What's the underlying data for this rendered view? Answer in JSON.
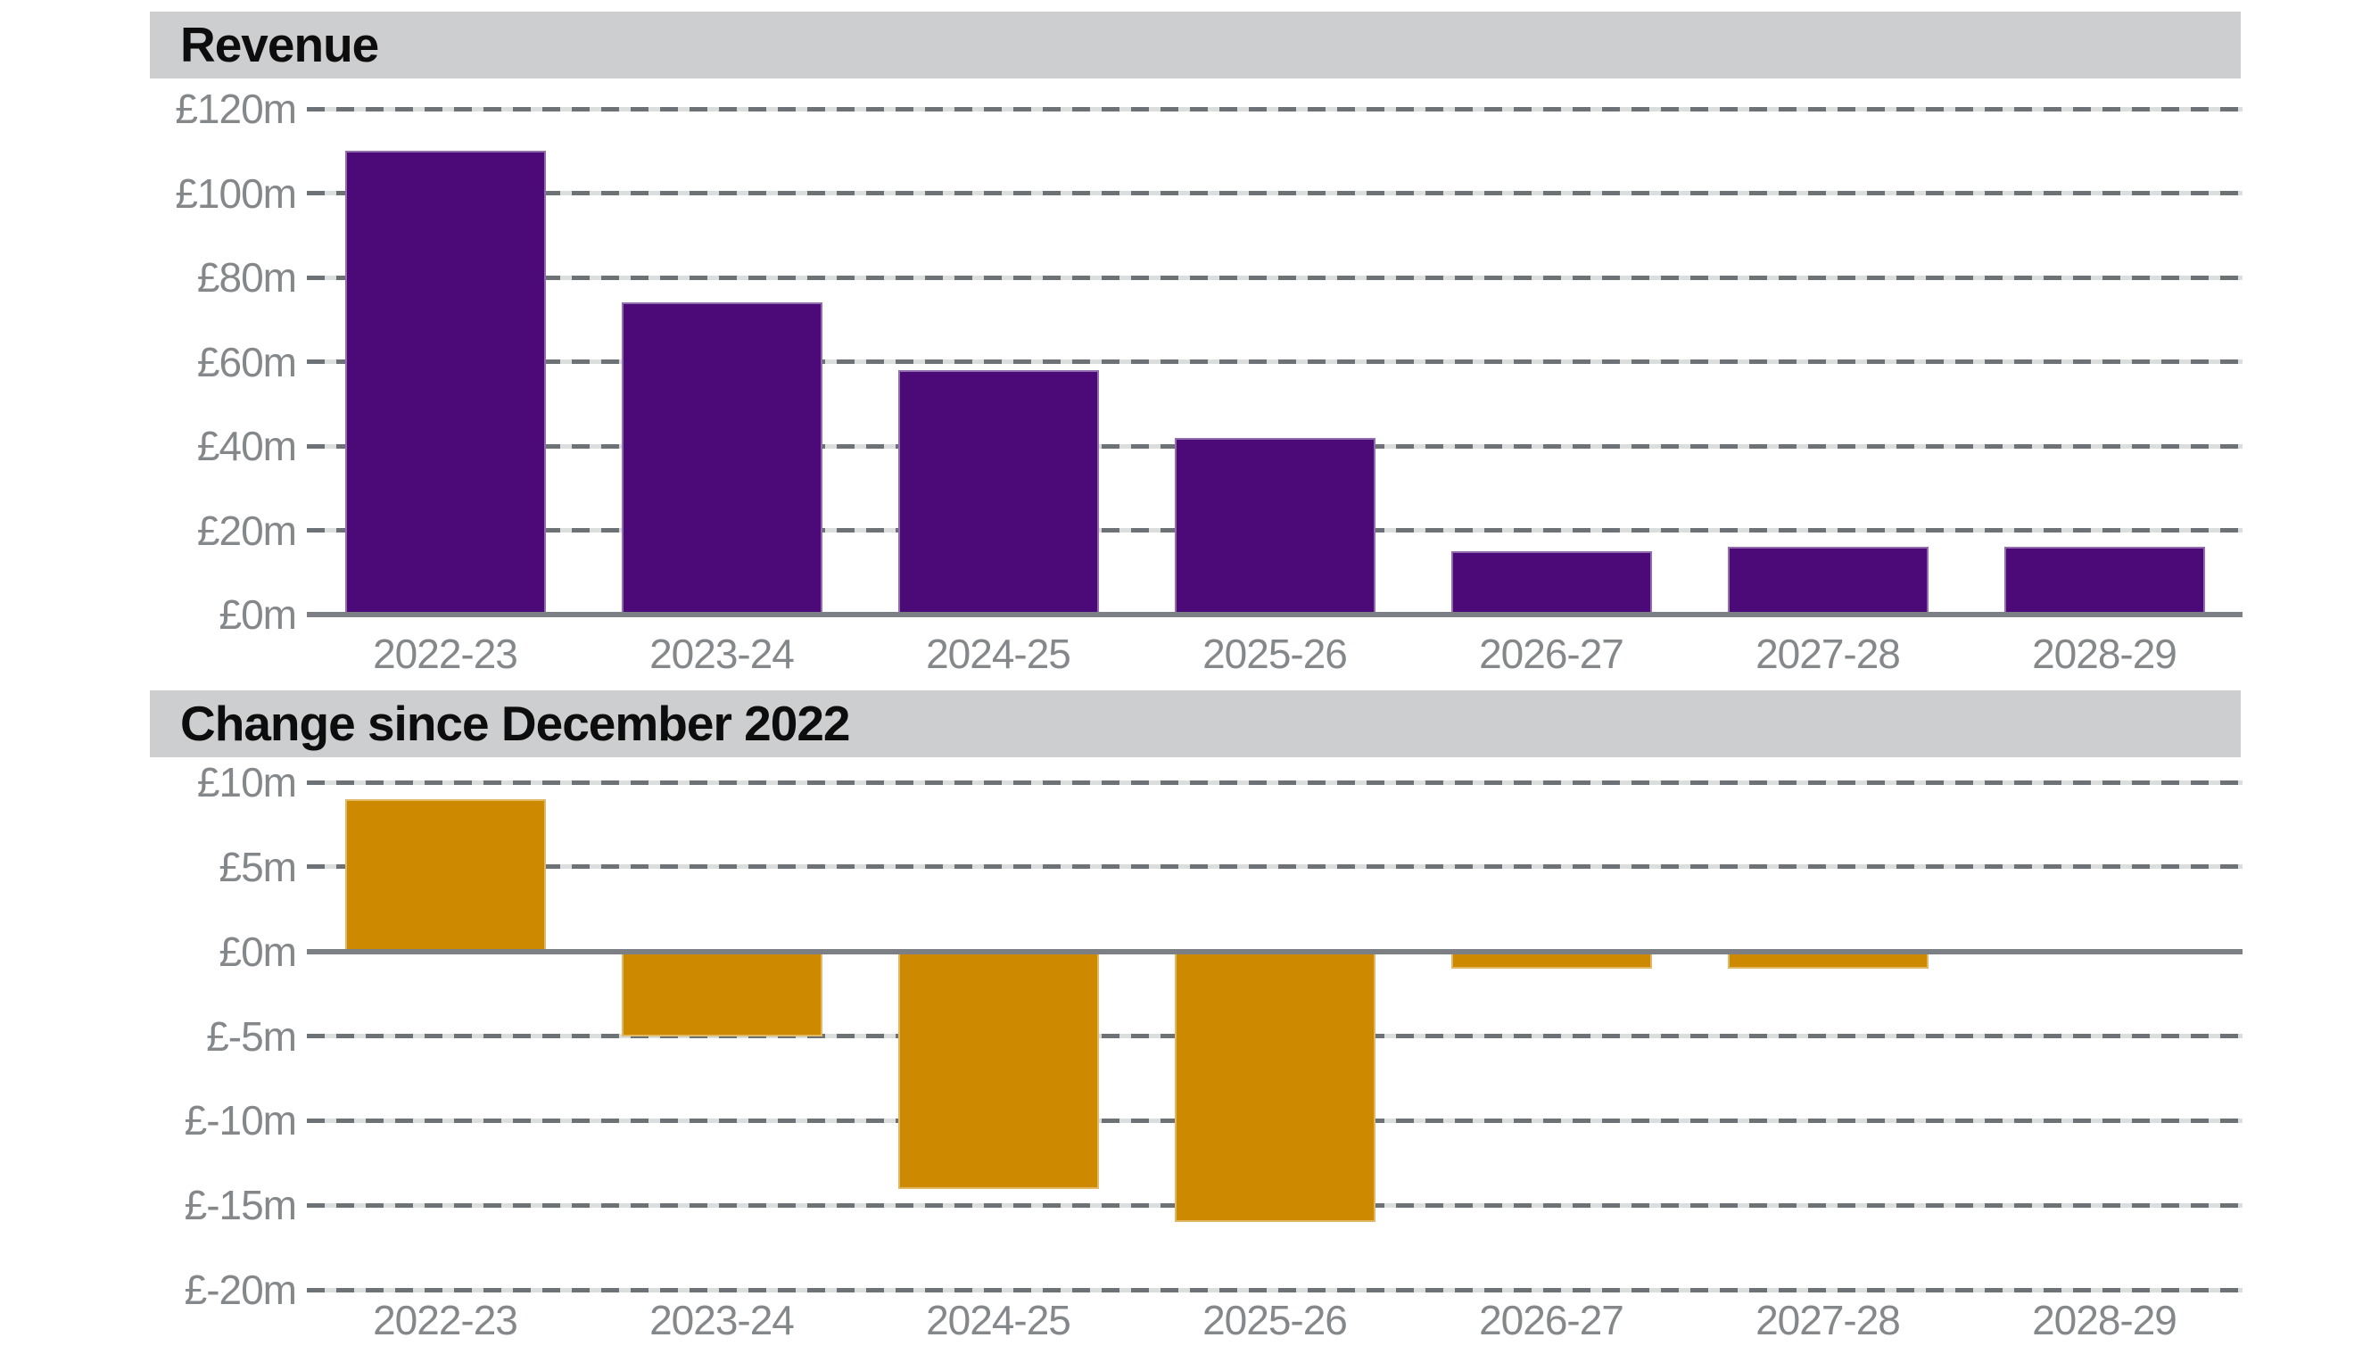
{
  "chart_data": [
    {
      "type": "bar",
      "title": "Revenue",
      "categories": [
        "2022-23",
        "2023-24",
        "2024-25",
        "2025-26",
        "2026-27",
        "2027-28",
        "2028-29"
      ],
      "values": [
        110,
        74,
        58,
        42,
        15,
        16,
        16
      ],
      "ytick_labels": [
        "£120m",
        "£100m",
        "£80m",
        "£60m",
        "£40m",
        "£20m",
        "£0m"
      ],
      "ytick_values": [
        120,
        100,
        80,
        60,
        40,
        20,
        0
      ],
      "ylim": [
        0,
        120
      ],
      "ytick_step": 20,
      "unit": "£m",
      "grid": "dashed-horizontal",
      "legend": "none",
      "bar_color": "#4b0a78"
    },
    {
      "type": "bar",
      "title": "Change since December 2022",
      "categories": [
        "2022-23",
        "2023-24",
        "2024-25",
        "2025-26",
        "2026-27",
        "2027-28",
        "2028-29"
      ],
      "values": [
        9,
        -5,
        -14,
        -16,
        -1,
        -1,
        0
      ],
      "ytick_labels": [
        "£10m",
        "£5m",
        "£0m",
        "£-5m",
        "£-10m",
        "£-15m",
        "£-20m"
      ],
      "ytick_values": [
        10,
        5,
        0,
        -5,
        -10,
        -15,
        -20
      ],
      "ylim": [
        -20,
        10
      ],
      "ytick_step": 5,
      "unit": "£m",
      "grid": "dashed-horizontal",
      "legend": "none",
      "bar_color": "#cd8a00"
    }
  ],
  "colors": {
    "revenue_bar": "#4b0a78",
    "change_bar": "#cd8a00",
    "title_bar_background": "#cdced0",
    "title_text": "#0d0d0d",
    "tick_label": "#85888b",
    "gridline_dash": "#6d7277",
    "gridline_gap": "#dcdddd",
    "axis_line": "#7c8084",
    "background": "#ffffff"
  }
}
